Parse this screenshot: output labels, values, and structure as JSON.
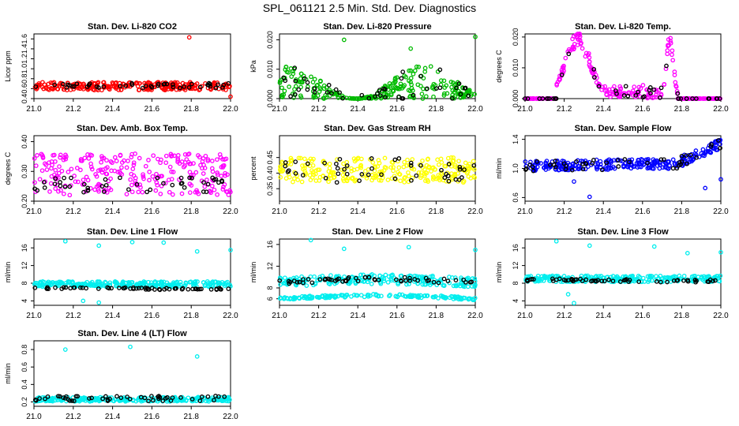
{
  "page": {
    "title": "SPL_061121  2.5 Min. Std. Dev. Diagnostics"
  },
  "chart_data": [
    {
      "type": "scatter",
      "title": "Stan. Dev. Li-820 CO2",
      "xlabel": "",
      "ylabel": "Licor ppm",
      "xlim": [
        21.0,
        22.0
      ],
      "ylim": [
        0.4,
        1.7
      ],
      "yticks": [
        "0.4",
        "0.6",
        "0.8",
        "1.0",
        "1.2",
        "1.4",
        "1.6"
      ],
      "xticks": [
        "21.0",
        "21.2",
        "21.4",
        "21.6",
        "21.8",
        "22.0"
      ],
      "series": [
        {
          "name": "red",
          "color": "#ff0000",
          "kind": "band",
          "center": 0.65,
          "spread": 0.08,
          "n": 260,
          "outliers": [
            [
              21.79,
              1.63
            ],
            [
              22.0,
              0.44
            ]
          ]
        },
        {
          "name": "black",
          "color": "#000000",
          "kind": "band",
          "center": 0.66,
          "spread": 0.05,
          "n": 45
        }
      ]
    },
    {
      "type": "scatter",
      "title": "Stan. Dev. Li-820 Pressure",
      "xlabel": "",
      "ylabel": "kPa",
      "xlim": [
        21.0,
        22.0
      ],
      "ylim": [
        0.0,
        0.022
      ],
      "yticks": [
        "0.000",
        "0.010",
        "0.020"
      ],
      "xticks": [
        "21.0",
        "21.2",
        "21.4",
        "21.6",
        "21.8",
        "22.0"
      ],
      "series": [
        {
          "name": "green",
          "color": "#00bb00",
          "kind": "wave",
          "baseline": 0.0,
          "amp": 0.009,
          "n": 260,
          "outliers": [
            [
              21.33,
              0.02
            ],
            [
              21.67,
              0.017
            ],
            [
              22.0,
              0.021
            ]
          ]
        },
        {
          "name": "black",
          "color": "#000000",
          "kind": "wave",
          "baseline": 0.001,
          "amp": 0.008,
          "n": 45
        }
      ]
    },
    {
      "type": "scatter",
      "title": "Stan. Dev. Li-820 Temp.",
      "xlabel": "",
      "ylabel": "degrees C",
      "xlim": [
        21.0,
        22.0
      ],
      "ylim": [
        0.0,
        0.021
      ],
      "yticks": [
        "0.000",
        "0.010",
        "0.020"
      ],
      "xticks": [
        "21.0",
        "21.2",
        "21.4",
        "21.6",
        "21.8",
        "22.0"
      ],
      "series": [
        {
          "name": "magenta",
          "color": "#ff00ff",
          "kind": "peaks",
          "n": 260
        },
        {
          "name": "black",
          "color": "#000000",
          "kind": "peaks",
          "n": 45
        }
      ]
    },
    {
      "type": "scatter",
      "title": "Stan. Dev. Amb. Box Temp.",
      "xlabel": "",
      "ylabel": "degrees C",
      "xlim": [
        21.0,
        22.0
      ],
      "ylim": [
        0.2,
        0.42
      ],
      "yticks": [
        "0.20",
        "0.30",
        "0.40"
      ],
      "xticks": [
        "21.0",
        "21.2",
        "21.4",
        "21.6",
        "21.8",
        "22.0"
      ],
      "series": [
        {
          "name": "magenta",
          "color": "#ff00ff",
          "kind": "band",
          "center": 0.29,
          "spread": 0.07,
          "n": 260
        },
        {
          "name": "black",
          "color": "#000000",
          "kind": "band",
          "center": 0.255,
          "spread": 0.025,
          "n": 45
        }
      ]
    },
    {
      "type": "scatter",
      "title": "Stan. Dev. Gas Stream RH",
      "xlabel": "",
      "ylabel": "percent",
      "xlim": [
        21.0,
        22.0
      ],
      "ylim": [
        0.31,
        0.52
      ],
      "yticks": [
        "0.35",
        "0.40",
        "0.45"
      ],
      "xticks": [
        "21.0",
        "21.2",
        "21.4",
        "21.6",
        "21.8",
        "22.0"
      ],
      "series": [
        {
          "name": "yellow",
          "color": "#ffff00",
          "kind": "band",
          "center": 0.41,
          "spread": 0.04,
          "n": 260
        },
        {
          "name": "black",
          "color": "#000000",
          "kind": "band",
          "center": 0.41,
          "spread": 0.04,
          "n": 45
        }
      ]
    },
    {
      "type": "scatter",
      "title": "Stan. Dev. Sample Flow",
      "xlabel": "",
      "ylabel": "ml/min",
      "xlim": [
        21.0,
        22.0
      ],
      "ylim": [
        0.55,
        1.45
      ],
      "yticks": [
        "0.6",
        "1.0",
        "1.4"
      ],
      "xticks": [
        "21.0",
        "21.2",
        "21.4",
        "21.6",
        "21.8",
        "22.0"
      ],
      "series": [
        {
          "name": "blue",
          "color": "#0000ff",
          "kind": "ramp",
          "n": 260,
          "outliers": [
            [
              21.33,
              0.61
            ],
            [
              21.92,
              0.73
            ],
            [
              22.0,
              0.85
            ],
            [
              21.25,
              0.82
            ]
          ]
        },
        {
          "name": "black",
          "color": "#000000",
          "kind": "ramp",
          "n": 45
        }
      ]
    },
    {
      "type": "scatter",
      "title": "Stan. Dev. Line 1 Flow",
      "xlabel": "",
      "ylabel": "ml/min",
      "xlim": [
        21.0,
        22.0
      ],
      "ylim": [
        3.0,
        18.0
      ],
      "yticks": [
        "4",
        "8",
        "12",
        "16"
      ],
      "xticks": [
        "21.0",
        "21.2",
        "21.4",
        "21.6",
        "21.8",
        "22.0"
      ],
      "series": [
        {
          "name": "cyan",
          "color": "#00eeee",
          "kind": "band",
          "center": 7.8,
          "spread": 0.6,
          "n": 260,
          "outliers": [
            [
              21.16,
              17.5
            ],
            [
              21.33,
              16.5
            ],
            [
              21.5,
              17.3
            ],
            [
              21.66,
              17.2
            ],
            [
              21.83,
              15.2
            ],
            [
              22.0,
              15.5
            ],
            [
              21.25,
              4.0
            ],
            [
              21.33,
              3.6
            ]
          ]
        },
        {
          "name": "black",
          "color": "#000000",
          "kind": "line",
          "center": 6.8,
          "spread": 0.2,
          "n": 60
        }
      ]
    },
    {
      "type": "scatter",
      "title": "Stan. Dev. Line 2 Flow",
      "xlabel": "",
      "ylabel": "ml/min",
      "xlim": [
        21.0,
        22.0
      ],
      "ylim": [
        4.8,
        17.0
      ],
      "yticks": [
        "6",
        "8",
        "12",
        "16"
      ],
      "xticks": [
        "21.0",
        "21.2",
        "21.4",
        "21.6",
        "21.8",
        "22.0"
      ],
      "series": [
        {
          "name": "cyan",
          "color": "#00eeee",
          "kind": "hump",
          "center": 9.0,
          "spread": 0.9,
          "n": 220,
          "outliers": [
            [
              21.16,
              16.8
            ],
            [
              21.33,
              15.2
            ],
            [
              21.66,
              15.5
            ],
            [
              22.0,
              15.0
            ]
          ]
        },
        {
          "name": "cyan-low",
          "color": "#00eeee",
          "kind": "hump",
          "center": 6.0,
          "spread": 0.25,
          "n": 160
        },
        {
          "name": "black",
          "color": "#000000",
          "kind": "hump",
          "center": 9.0,
          "spread": 0.4,
          "n": 55
        }
      ]
    },
    {
      "type": "scatter",
      "title": "Stan. Dev. Line 3 Flow",
      "xlabel": "",
      "ylabel": "ml/min",
      "xlim": [
        21.0,
        22.0
      ],
      "ylim": [
        3.0,
        18.0
      ],
      "yticks": [
        "4",
        "8",
        "12",
        "16"
      ],
      "xticks": [
        "21.0",
        "21.2",
        "21.4",
        "21.6",
        "21.8",
        "22.0"
      ],
      "series": [
        {
          "name": "cyan",
          "color": "#00eeee",
          "kind": "band",
          "center": 9.0,
          "spread": 0.7,
          "n": 260,
          "outliers": [
            [
              21.16,
              17.5
            ],
            [
              21.33,
              16.5
            ],
            [
              21.66,
              16.3
            ],
            [
              21.83,
              14.8
            ],
            [
              22.0,
              15.0
            ],
            [
              21.25,
              3.5
            ],
            [
              21.22,
              5.5
            ]
          ]
        },
        {
          "name": "black",
          "color": "#000000",
          "kind": "line",
          "center": 8.6,
          "spread": 0.3,
          "n": 55
        }
      ]
    },
    {
      "type": "scatter",
      "title": "Stan. Dev. Line 4 (LT) Flow",
      "xlabel": "",
      "ylabel": "ml/min",
      "xlim": [
        21.0,
        22.0
      ],
      "ylim": [
        0.15,
        0.9
      ],
      "yticks": [
        "0.2",
        "0.4",
        "0.6",
        "0.8"
      ],
      "xticks": [
        "21.0",
        "21.2",
        "21.4",
        "21.6",
        "21.8",
        "22.0"
      ],
      "series": [
        {
          "name": "cyan",
          "color": "#00eeee",
          "kind": "band",
          "center": 0.23,
          "spread": 0.025,
          "n": 260,
          "outliers": [
            [
              21.16,
              0.8
            ],
            [
              21.49,
              0.83
            ],
            [
              21.83,
              0.72
            ]
          ]
        },
        {
          "name": "black",
          "color": "#000000",
          "kind": "band",
          "center": 0.24,
          "spread": 0.03,
          "n": 50
        }
      ]
    }
  ]
}
